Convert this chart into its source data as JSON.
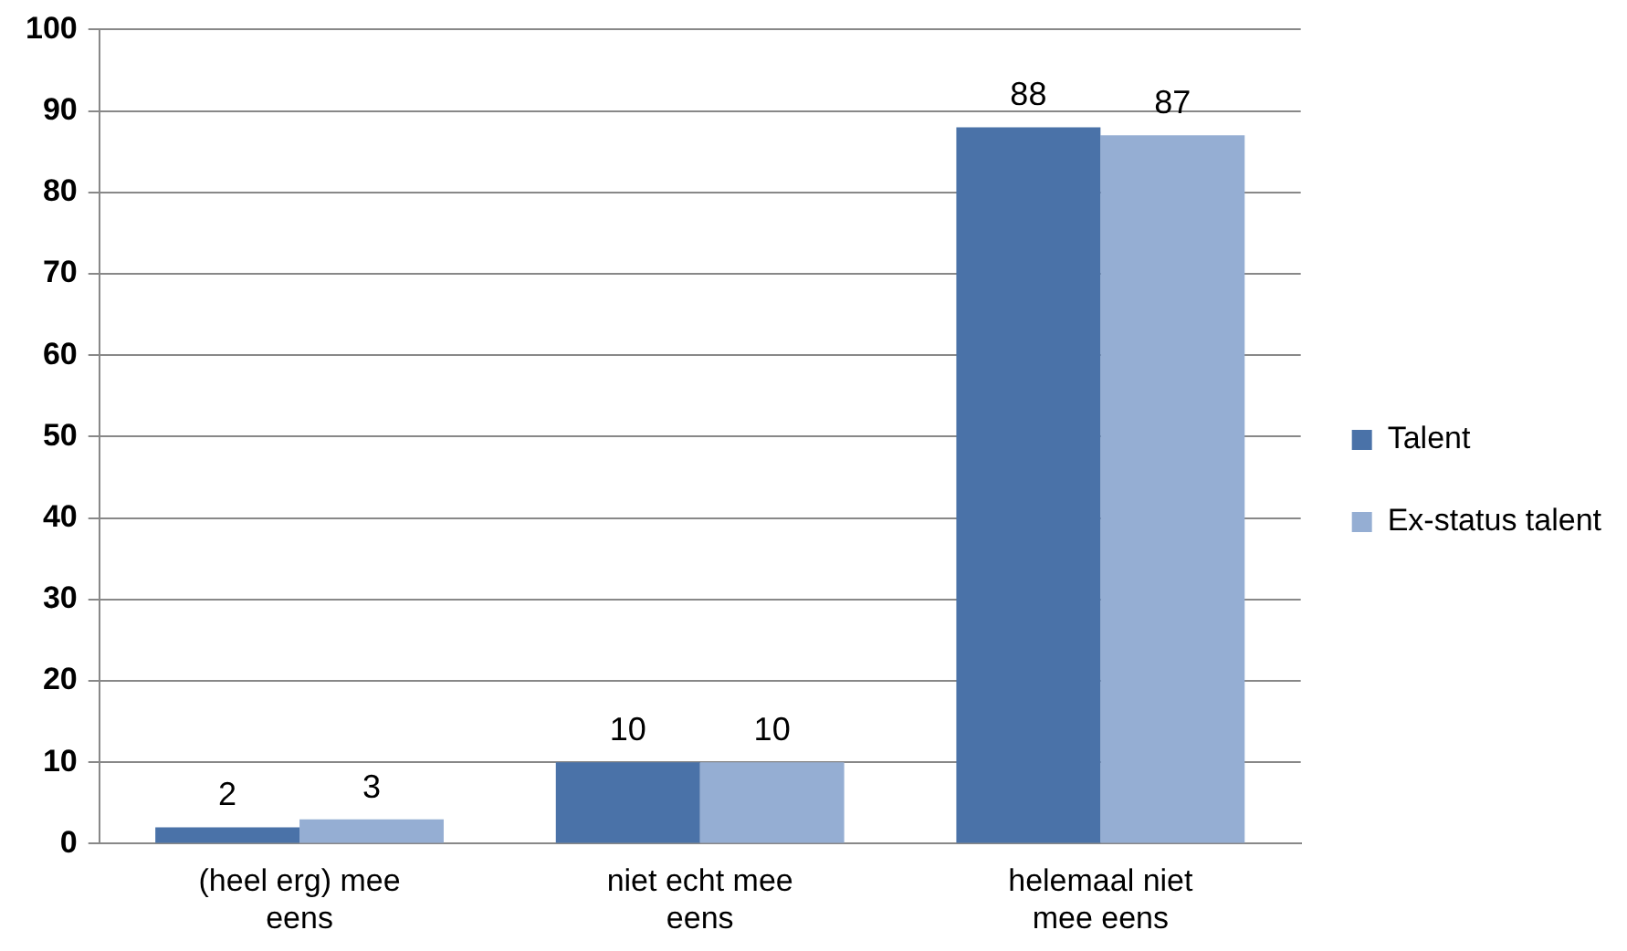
{
  "chart_data": {
    "type": "bar",
    "categories": [
      "(heel erg) mee eens",
      "niet echt mee eens",
      "helemaal niet mee eens"
    ],
    "series": [
      {
        "name": "Talent",
        "color": "#4a72a8",
        "values": [
          2,
          10,
          88
        ]
      },
      {
        "name": "Ex-status talent",
        "color": "#95aed3",
        "values": [
          3,
          10,
          87
        ]
      }
    ],
    "ylim": [
      0,
      100
    ],
    "yticks": [
      0,
      10,
      20,
      30,
      40,
      50,
      60,
      70,
      80,
      90,
      100
    ],
    "grid": "y",
    "legend": "right",
    "data_labels": true
  }
}
